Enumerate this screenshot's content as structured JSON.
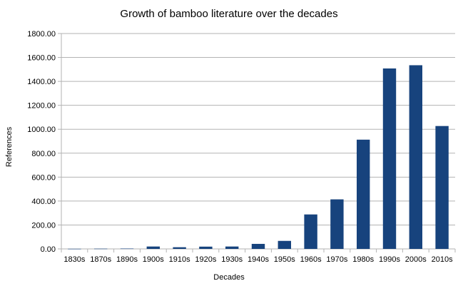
{
  "chart_data": {
    "type": "bar",
    "title": "Growth of bamboo literature over the decades",
    "xlabel": "Decades",
    "ylabel": "References",
    "categories": [
      "1830s",
      "1870s",
      "1890s",
      "1900s",
      "1910s",
      "1920s",
      "1930s",
      "1940s",
      "1950s",
      "1960s",
      "1970s",
      "1980s",
      "1990s",
      "2000s",
      "2010s"
    ],
    "values": [
      1,
      2,
      3,
      20,
      14,
      19,
      20,
      42,
      67,
      288,
      414,
      913,
      1508,
      1535,
      1027
    ],
    "ylim": [
      0,
      1800
    ],
    "yticks": [
      0,
      200,
      400,
      600,
      800,
      1000,
      1200,
      1400,
      1600,
      1800
    ],
    "ytick_labels": [
      "0.00",
      "200.00",
      "400.00",
      "600.00",
      "800.00",
      "1000.00",
      "1200.00",
      "1400.00",
      "1600.00",
      "1800.00"
    ],
    "grid": true,
    "legend": "none",
    "bar_color": "#17437d",
    "grid_color": "#b3b3b3"
  }
}
